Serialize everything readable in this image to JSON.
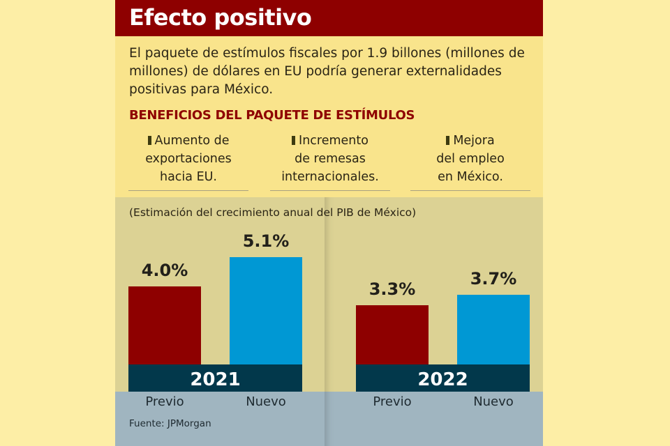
{
  "title": "Efecto positivo",
  "description": "El paquete de estímulos fiscales por 1.9 billones (millones de millones) de dólares en EU podría generar externalidades positivas para México.",
  "benefits": {
    "heading": "BENEFICIOS DEL PAQUETE DE ESTÍMULOS",
    "items": [
      {
        "first": "Aumento de",
        "rest": [
          "exportaciones",
          "hacia EU."
        ]
      },
      {
        "first": "Incremento",
        "rest": [
          "de remesas",
          "internacionales."
        ]
      },
      {
        "first": "Mejora",
        "rest": [
          "del empleo",
          "en México."
        ]
      }
    ]
  },
  "source": "Fuente: JPMorgan",
  "colors": {
    "previo": "#8e0000",
    "nuevo": "#0098d4",
    "year_band": "#02384b",
    "title_bar": "#8e0000"
  },
  "chart_data": {
    "type": "bar",
    "title": "(Estimación del crecimiento anual del PIB de México)",
    "groups": [
      {
        "year": "2021",
        "categories": [
          "Previo",
          "Nuevo"
        ],
        "values": [
          4.0,
          5.1
        ],
        "labels": [
          "4.0%",
          "5.1%"
        ]
      },
      {
        "year": "2022",
        "categories": [
          "Previo",
          "Nuevo"
        ],
        "values": [
          3.3,
          3.7
        ],
        "labels": [
          "3.3%",
          "3.7%"
        ]
      }
    ],
    "unit": "%",
    "grid": false
  }
}
